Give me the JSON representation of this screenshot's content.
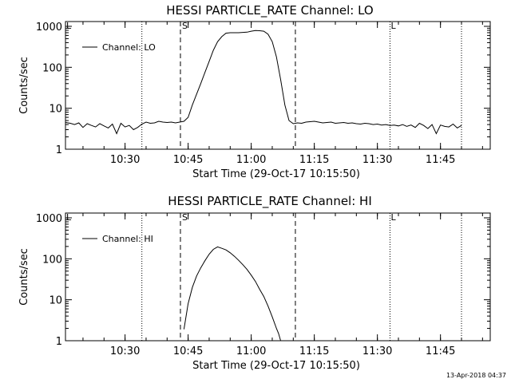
{
  "chart_data": [
    {
      "type": "line",
      "title": "HESSI PARTICLE_RATE Channel: LO",
      "xlabel": "Start Time (29-Oct-17 10:15:50)",
      "ylabel": "Counts/sec",
      "x_ticks": [
        "10:30",
        "10:45",
        "11:00",
        "11:15",
        "11:30",
        "11:45"
      ],
      "y_ticks": [
        "1",
        "10",
        "100",
        "1000"
      ],
      "y_scale": "log",
      "ylim": [
        1,
        1000
      ],
      "legend": "Channel: LO",
      "legend_position": "top-left",
      "markers": [
        {
          "label": "S",
          "style": "dashed",
          "time": "10:43:10"
        },
        {
          "label": "",
          "style": "dashed",
          "time": "11:10:30"
        }
      ],
      "dotted_lines": [
        "10:15:50",
        "10:34:00",
        "11:33:00",
        "11:50:00"
      ],
      "corner_marks": [
        {
          "label": "L",
          "time": "10:15:50"
        },
        {
          "label": "L",
          "time": "11:33:00"
        }
      ],
      "series": [
        {
          "name": "Channel: LO",
          "x": [
            "10:15:50",
            "10:17",
            "10:18",
            "10:19",
            "10:20",
            "10:21",
            "10:22",
            "10:23",
            "10:24",
            "10:25",
            "10:26",
            "10:27",
            "10:28",
            "10:29",
            "10:30",
            "10:31",
            "10:32",
            "10:33",
            "10:34",
            "10:35",
            "10:36",
            "10:37",
            "10:38",
            "10:39",
            "10:40",
            "10:41",
            "10:42",
            "10:43",
            "10:44",
            "10:45",
            "10:46",
            "10:47",
            "10:48",
            "10:49",
            "10:50",
            "10:51",
            "10:52",
            "10:53",
            "10:54",
            "10:55",
            "10:56",
            "10:57",
            "10:58",
            "10:59",
            "11:00",
            "11:01",
            "11:02",
            "11:03",
            "11:04",
            "11:05",
            "11:06",
            "11:07",
            "11:08",
            "11:09",
            "11:10",
            "11:11",
            "11:12",
            "11:13",
            "11:14",
            "11:15",
            "11:16",
            "11:17",
            "11:18",
            "11:19",
            "11:20",
            "11:21",
            "11:22",
            "11:23",
            "11:24",
            "11:25",
            "11:26",
            "11:27",
            "11:28",
            "11:29",
            "11:30",
            "11:31",
            "11:32",
            "11:33",
            "11:34",
            "11:35",
            "11:36",
            "11:37",
            "11:38",
            "11:39",
            "11:40",
            "11:41",
            "11:42",
            "11:43",
            "11:44",
            "11:45",
            "11:46",
            "11:47",
            "11:48",
            "11:49",
            "11:50"
          ],
          "values": [
            4.5,
            4.3,
            4.0,
            4.4,
            3.4,
            4.2,
            3.8,
            3.5,
            4.2,
            3.7,
            3.3,
            4.1,
            2.4,
            4.3,
            3.5,
            3.8,
            3.0,
            3.4,
            4.1,
            4.6,
            4.3,
            4.4,
            4.8,
            4.6,
            4.5,
            4.6,
            4.4,
            4.6,
            4.8,
            6.0,
            12,
            22,
            40,
            75,
            140,
            260,
            420,
            560,
            680,
            700,
            700,
            700,
            710,
            720,
            760,
            790,
            780,
            760,
            640,
            420,
            180,
            50,
            12,
            5.0,
            4.2,
            4.4,
            4.3,
            4.6,
            4.7,
            4.8,
            4.6,
            4.4,
            4.5,
            4.6,
            4.3,
            4.4,
            4.5,
            4.3,
            4.4,
            4.2,
            4.1,
            4.3,
            4.2,
            4.0,
            4.1,
            3.9,
            4.0,
            3.8,
            3.9,
            3.7,
            4.0,
            3.6,
            3.9,
            3.4,
            4.3,
            3.8,
            3.2,
            4.0,
            2.4,
            3.9,
            3.6,
            3.5,
            4.1,
            3.3,
            3.8
          ]
        }
      ]
    },
    {
      "type": "line",
      "title": "HESSI PARTICLE_RATE Channel: HI",
      "xlabel": "Start Time (29-Oct-17 10:15:50)",
      "ylabel": "Counts/sec",
      "x_ticks": [
        "10:30",
        "10:45",
        "11:00",
        "11:15",
        "11:30",
        "11:45"
      ],
      "y_ticks": [
        "1",
        "10",
        "100",
        "1000"
      ],
      "y_scale": "log",
      "ylim": [
        1,
        1000
      ],
      "legend": "Channel: HI",
      "legend_position": "top-left",
      "markers": [
        {
          "label": "S",
          "style": "dashed",
          "time": "10:43:10"
        },
        {
          "label": "",
          "style": "dashed",
          "time": "11:10:30"
        }
      ],
      "dotted_lines": [
        "10:15:50",
        "10:34:00",
        "11:33:00",
        "11:50:00"
      ],
      "corner_marks": [
        {
          "label": "L",
          "time": "10:15:50"
        },
        {
          "label": "L",
          "time": "11:33:00"
        }
      ],
      "series": [
        {
          "name": "Channel: HI",
          "x": [
            "10:44:00",
            "10:45",
            "10:46",
            "10:47",
            "10:48",
            "10:49",
            "10:50",
            "10:51",
            "10:52",
            "10:53",
            "10:54",
            "10:55",
            "10:56",
            "10:57",
            "10:58",
            "10:59",
            "11:00",
            "11:01",
            "11:02",
            "11:03",
            "11:04",
            "11:05",
            "11:06",
            "11:06:30",
            "11:07"
          ],
          "values": [
            1.9,
            8,
            20,
            38,
            60,
            90,
            130,
            170,
            195,
            180,
            165,
            140,
            115,
            92,
            72,
            55,
            40,
            28,
            18,
            12,
            7,
            3.8,
            2.0,
            1.5,
            1.0
          ]
        }
      ]
    }
  ],
  "footer": {
    "timestamp": "13-Apr-2018 04:37"
  }
}
